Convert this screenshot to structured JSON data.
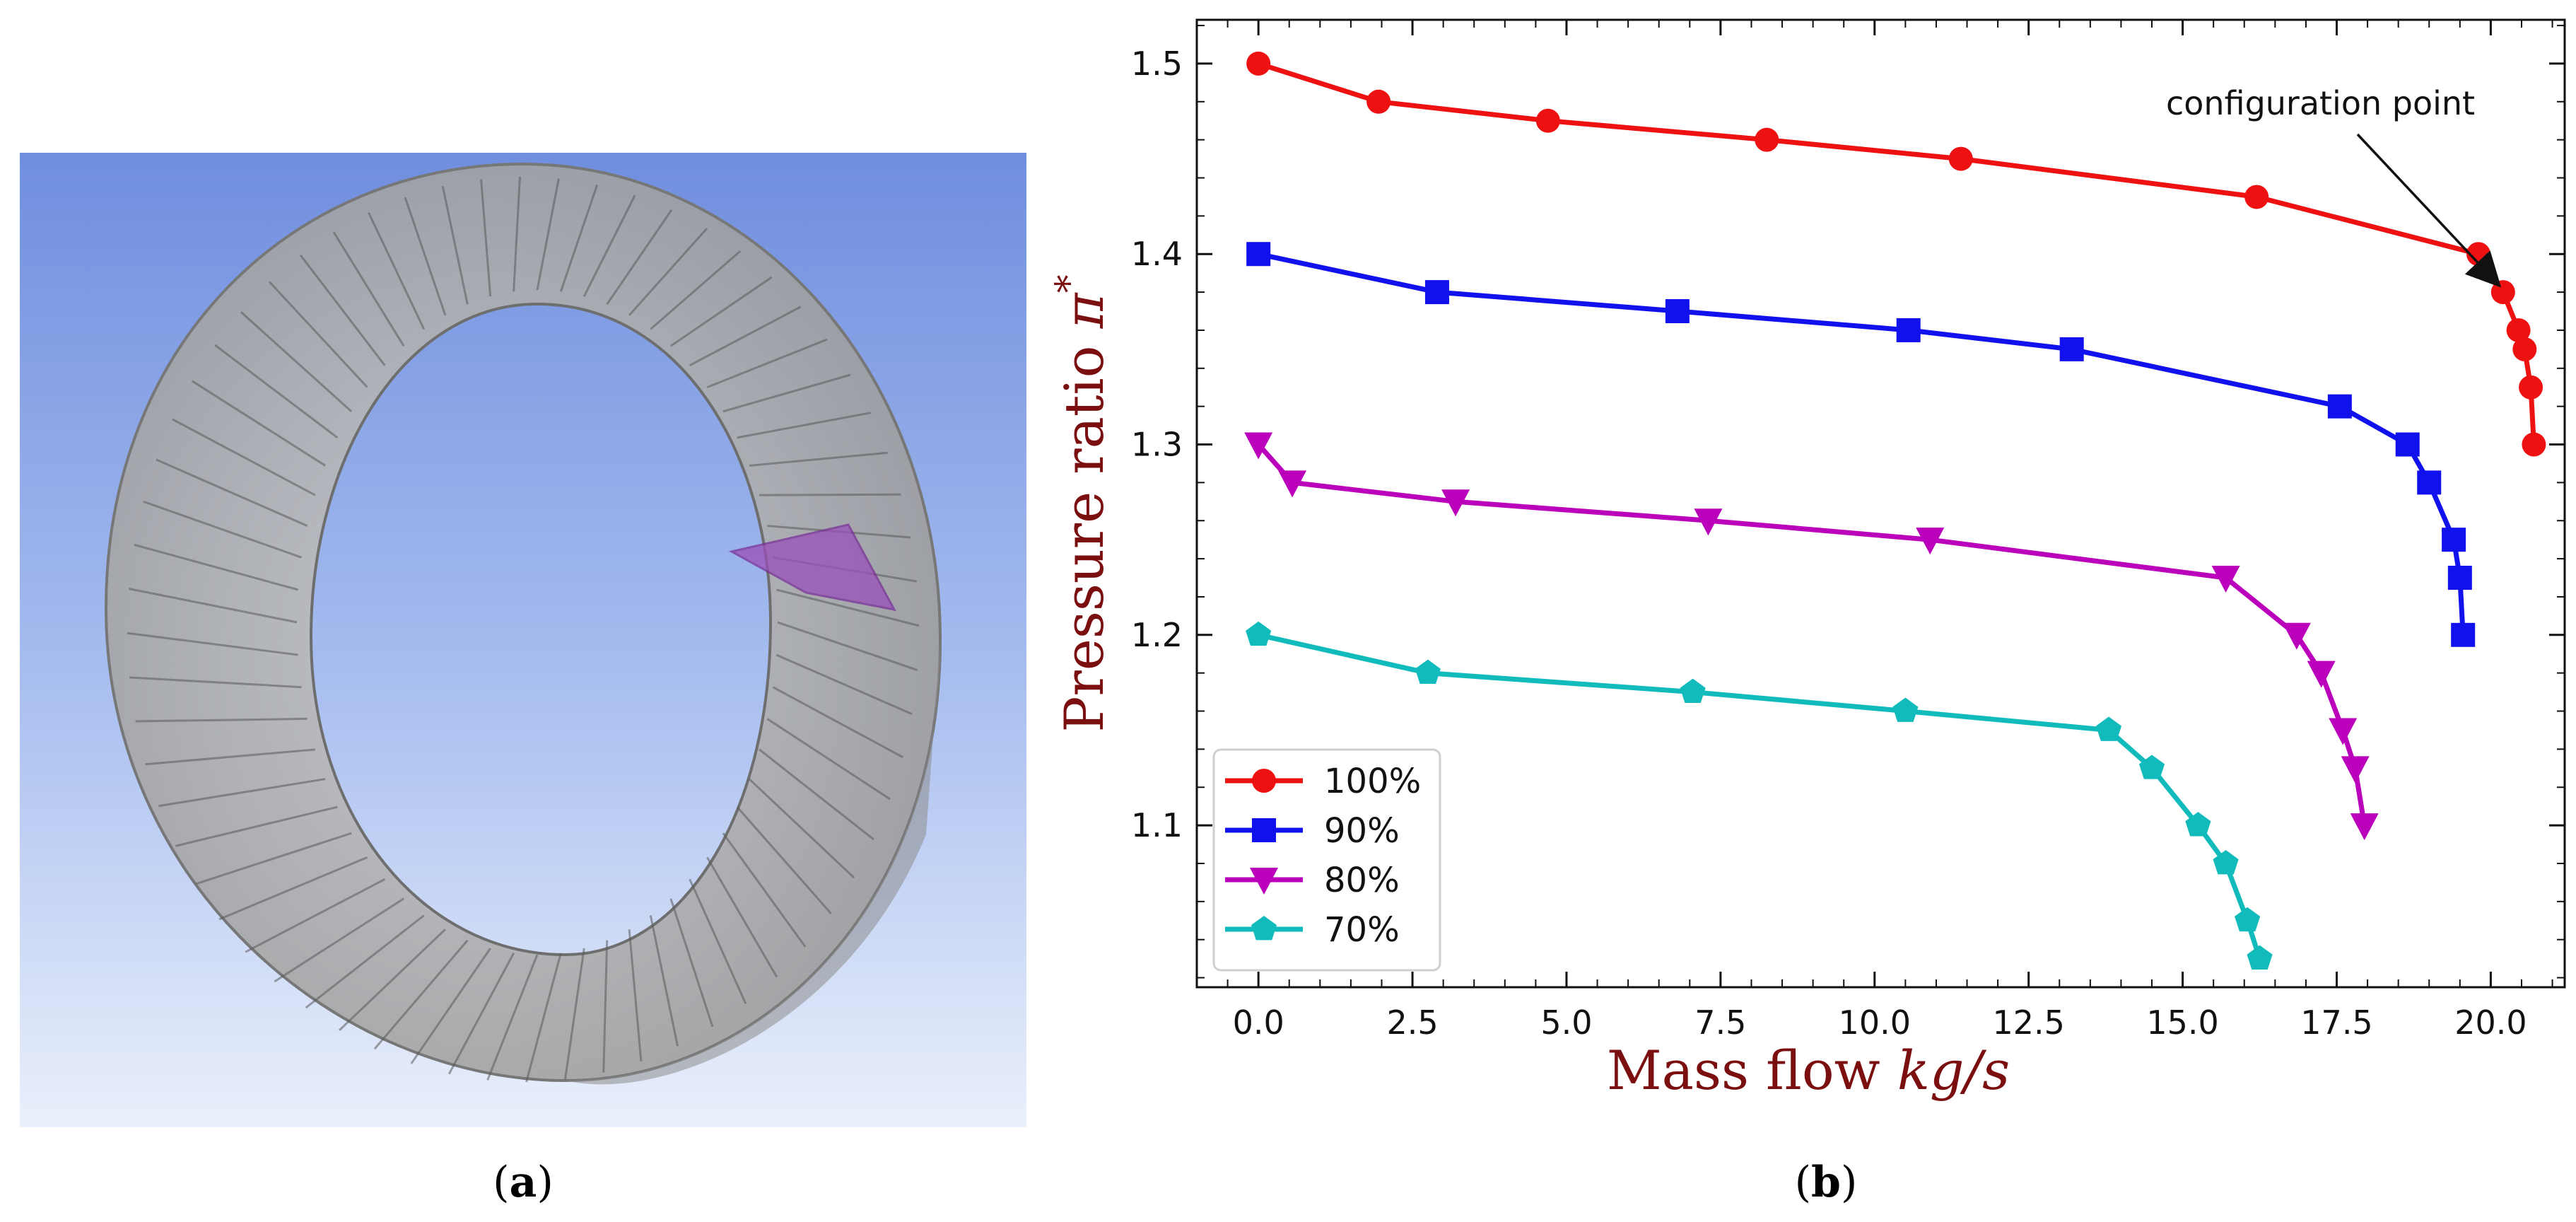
{
  "panel_a": {
    "caption_letter": "a",
    "image_description_icon": "annular-blade-cascade-render"
  },
  "panel_b": {
    "caption_letter": "b"
  },
  "colors": {
    "axis_label": "#7b0e0e",
    "s100": "#ee1111",
    "s90": "#1111ee",
    "s80": "#bb00bb",
    "s70": "#11bbbb"
  },
  "chart_data": {
    "type": "line",
    "title": "",
    "xlabel_text": "Mass flow ",
    "xlabel_unit": "kg/s",
    "ylabel_text": "Pressure ratio ",
    "ylabel_symbol": "π",
    "ylabel_sup": "*",
    "xlim": [
      -1.0,
      21.2
    ],
    "ylim": [
      1.015,
      1.523
    ],
    "xticks": [
      0.0,
      2.5,
      5.0,
      7.5,
      10.0,
      12.5,
      15.0,
      17.5,
      20.0
    ],
    "xtick_labels": [
      "0.0",
      "2.5",
      "5.0",
      "7.5",
      "10.0",
      "12.5",
      "15.0",
      "17.5",
      "20.0"
    ],
    "yticks": [
      1.1,
      1.2,
      1.3,
      1.4,
      1.5
    ],
    "ytick_labels": [
      "1.1",
      "1.2",
      "1.3",
      "1.4",
      "1.5"
    ],
    "legend_position": "lower-left",
    "annotation": {
      "text": "configuration point",
      "target_x": 20.2,
      "target_y": 1.38
    },
    "series": [
      {
        "name": "100%",
        "marker": "circle",
        "color": "#ee1111",
        "x": [
          0.0,
          1.95,
          4.7,
          8.25,
          11.4,
          16.2,
          19.8,
          20.2,
          20.45,
          20.55,
          20.65,
          20.7
        ],
        "y": [
          1.5,
          1.48,
          1.47,
          1.46,
          1.45,
          1.43,
          1.4,
          1.38,
          1.36,
          1.35,
          1.33,
          1.3
        ]
      },
      {
        "name": "90%",
        "marker": "square",
        "color": "#1111ee",
        "x": [
          0.0,
          2.9,
          6.8,
          10.55,
          13.2,
          17.55,
          18.65,
          19.0,
          19.4,
          19.5,
          19.55
        ],
        "y": [
          1.4,
          1.38,
          1.37,
          1.36,
          1.35,
          1.32,
          1.3,
          1.28,
          1.25,
          1.23,
          1.2
        ]
      },
      {
        "name": "80%",
        "marker": "triangle-down",
        "color": "#bb00bb",
        "x": [
          0.0,
          0.55,
          3.2,
          7.3,
          10.9,
          15.7,
          16.85,
          17.25,
          17.6,
          17.8,
          17.95
        ],
        "y": [
          1.3,
          1.28,
          1.27,
          1.26,
          1.25,
          1.23,
          1.2,
          1.18,
          1.15,
          1.13,
          1.1
        ]
      },
      {
        "name": "70%",
        "marker": "pentagon",
        "color": "#11bbbb",
        "x": [
          0.0,
          2.75,
          7.05,
          10.5,
          13.8,
          14.5,
          15.25,
          15.7,
          16.05,
          16.25
        ],
        "y": [
          1.2,
          1.18,
          1.17,
          1.16,
          1.15,
          1.13,
          1.1,
          1.08,
          1.05,
          1.03
        ]
      }
    ]
  }
}
